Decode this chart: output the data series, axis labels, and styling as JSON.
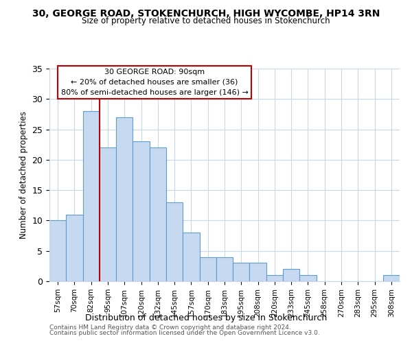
{
  "title": "30, GEORGE ROAD, STOKENCHURCH, HIGH WYCOMBE, HP14 3RN",
  "subtitle": "Size of property relative to detached houses in Stokenchurch",
  "xlabel": "Distribution of detached houses by size in Stokenchurch",
  "ylabel": "Number of detached properties",
  "categories": [
    "57sqm",
    "70sqm",
    "82sqm",
    "95sqm",
    "107sqm",
    "120sqm",
    "132sqm",
    "145sqm",
    "157sqm",
    "170sqm",
    "183sqm",
    "195sqm",
    "208sqm",
    "220sqm",
    "233sqm",
    "245sqm",
    "258sqm",
    "270sqm",
    "283sqm",
    "295sqm",
    "308sqm"
  ],
  "values": [
    10,
    11,
    28,
    22,
    27,
    23,
    22,
    13,
    8,
    4,
    4,
    3,
    3,
    1,
    2,
    1,
    0,
    0,
    0,
    0,
    1
  ],
  "bar_color": "#c6d9f0",
  "bar_edge_color": "#5b9bd5",
  "reference_line_color": "#c00000",
  "annotation_line1": "30 GEORGE ROAD: 90sqm",
  "annotation_line2": "← 20% of detached houses are smaller (36)",
  "annotation_line3": "80% of semi-detached houses are larger (146) →",
  "ylim": [
    0,
    35
  ],
  "yticks": [
    0,
    5,
    10,
    15,
    20,
    25,
    30,
    35
  ],
  "footer_line1": "Contains HM Land Registry data © Crown copyright and database right 2024.",
  "footer_line2": "Contains public sector information licensed under the Open Government Licence v3.0.",
  "background_color": "#ffffff",
  "grid_color": "#c8d8e8"
}
